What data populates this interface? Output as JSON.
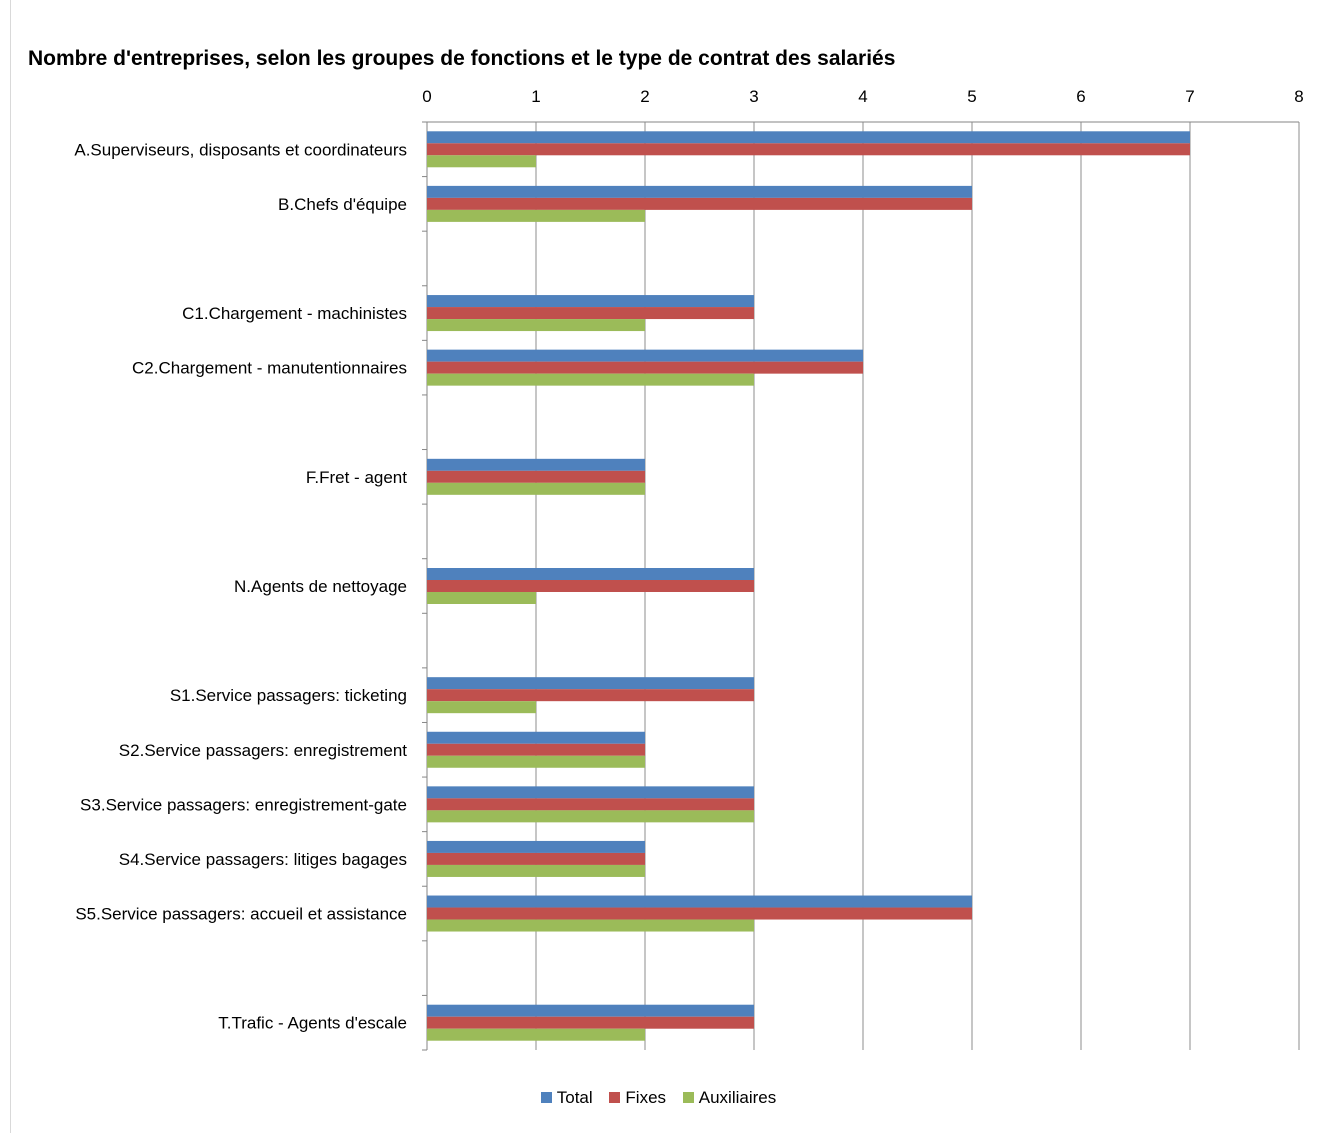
{
  "chart_data": {
    "type": "bar",
    "orientation": "horizontal",
    "title": "Nombre d'entreprises, selon les groupes de fonctions et le type de contrat des salariés",
    "xlim": [
      0,
      8
    ],
    "xticks": [
      0,
      1,
      2,
      3,
      4,
      5,
      6,
      7,
      8
    ],
    "grid": true,
    "legend_position": "bottom",
    "categories": [
      "A.Superviseurs, disposants et coordinateurs",
      "B.Chefs d'équipe",
      "",
      "C1.Chargement - machinistes",
      "C2.Chargement - manutentionnaires",
      "",
      "F.Fret - agent",
      "",
      "N.Agents de nettoyage",
      "",
      "S1.Service passagers: ticketing",
      "S2.Service passagers: enregistrement",
      "S3.Service passagers: enregistrement-gate",
      "S4.Service passagers: litiges bagages",
      "S5.Service passagers: accueil et assistance",
      "",
      "T.Trafic - Agents d'escale"
    ],
    "series": [
      {
        "name": "Total",
        "color": "#4F81BD",
        "values": [
          7,
          5,
          null,
          3,
          4,
          null,
          2,
          null,
          3,
          null,
          3,
          2,
          3,
          2,
          5,
          null,
          3
        ]
      },
      {
        "name": "Fixes",
        "color": "#C0504D",
        "values": [
          7,
          5,
          null,
          3,
          4,
          null,
          2,
          null,
          3,
          null,
          3,
          2,
          3,
          2,
          5,
          null,
          3
        ]
      },
      {
        "name": "Auxiliaires",
        "color": "#9BBB59",
        "values": [
          1,
          2,
          null,
          2,
          3,
          null,
          2,
          null,
          1,
          null,
          1,
          2,
          3,
          2,
          3,
          null,
          2
        ]
      }
    ]
  }
}
